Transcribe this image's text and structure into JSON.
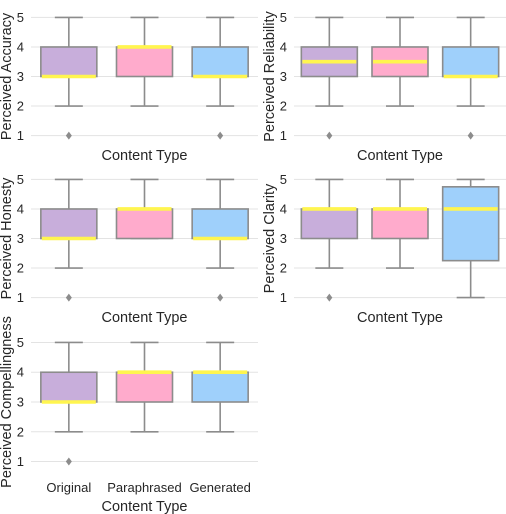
{
  "chart_data": [
    {
      "type": "box",
      "ylabel": "Perceived Accuracy",
      "xlabel": "Content Type",
      "categories": [
        "Original",
        "Paraphrased",
        "Generated"
      ],
      "show_category_labels": false,
      "yticks": [
        "1",
        "2",
        "3",
        "4",
        "5"
      ],
      "ylim": [
        0.85,
        5.15
      ],
      "grid": true,
      "boxes": [
        {
          "category": "Original",
          "whisker_low": 2,
          "q1": 3,
          "median": 3,
          "q3": 4,
          "whisker_high": 5,
          "outliers": [
            1
          ]
        },
        {
          "category": "Paraphrased",
          "whisker_low": 2,
          "q1": 3,
          "median": 4,
          "q3": 4,
          "whisker_high": 5,
          "outliers": []
        },
        {
          "category": "Generated",
          "whisker_low": 2,
          "q1": 3,
          "median": 3,
          "q3": 4,
          "whisker_high": 5,
          "outliers": [
            1
          ]
        }
      ]
    },
    {
      "type": "box",
      "ylabel": "Perceived Reliability",
      "xlabel": "Content Type",
      "categories": [
        "Original",
        "Paraphrased",
        "Generated"
      ],
      "show_category_labels": false,
      "yticks": [
        "1",
        "2",
        "3",
        "4",
        "5"
      ],
      "ylim": [
        0.85,
        5.15
      ],
      "grid": true,
      "boxes": [
        {
          "category": "Original",
          "whisker_low": 2,
          "q1": 3,
          "median": 3.5,
          "q3": 4,
          "whisker_high": 5,
          "outliers": [
            1
          ]
        },
        {
          "category": "Paraphrased",
          "whisker_low": 2,
          "q1": 3,
          "median": 3.5,
          "q3": 4,
          "whisker_high": 5,
          "outliers": []
        },
        {
          "category": "Generated",
          "whisker_low": 2,
          "q1": 3,
          "median": 3,
          "q3": 4,
          "whisker_high": 5,
          "outliers": [
            1
          ]
        }
      ]
    },
    {
      "type": "box",
      "ylabel": "Perceived Honesty",
      "xlabel": "Content Type",
      "categories": [
        "Original",
        "Paraphrased",
        "Generated"
      ],
      "show_category_labels": false,
      "yticks": [
        "1",
        "2",
        "3",
        "4",
        "5"
      ],
      "ylim": [
        0.85,
        5.15
      ],
      "grid": true,
      "boxes": [
        {
          "category": "Original",
          "whisker_low": 2,
          "q1": 3,
          "median": 3,
          "q3": 4,
          "whisker_high": 5,
          "outliers": [
            1
          ]
        },
        {
          "category": "Paraphrased",
          "whisker_low": 3,
          "q1": 3,
          "median": 4,
          "q3": 4,
          "whisker_high": 5,
          "outliers": []
        },
        {
          "category": "Generated",
          "whisker_low": 2,
          "q1": 3,
          "median": 3,
          "q3": 4,
          "whisker_high": 5,
          "outliers": [
            1
          ]
        }
      ]
    },
    {
      "type": "box",
      "ylabel": "Perceived Clarity",
      "xlabel": "Content Type",
      "categories": [
        "Original",
        "Paraphrased",
        "Generated"
      ],
      "show_category_labels": false,
      "yticks": [
        "1",
        "2",
        "3",
        "4",
        "5"
      ],
      "ylim": [
        0.85,
        5.15
      ],
      "grid": true,
      "boxes": [
        {
          "category": "Original",
          "whisker_low": 2,
          "q1": 3,
          "median": 4,
          "q3": 4,
          "whisker_high": 5,
          "outliers": [
            1
          ]
        },
        {
          "category": "Paraphrased",
          "whisker_low": 2,
          "q1": 3,
          "median": 4,
          "q3": 4,
          "whisker_high": 5,
          "outliers": []
        },
        {
          "category": "Generated",
          "whisker_low": 1,
          "q1": 2.25,
          "median": 4,
          "q3": 4.75,
          "whisker_high": 5,
          "outliers": []
        }
      ]
    },
    {
      "type": "box",
      "ylabel": "Perceived Compellingness",
      "xlabel": "Content Type",
      "categories": [
        "Original",
        "Paraphrased",
        "Generated"
      ],
      "show_category_labels": true,
      "yticks": [
        "1",
        "2",
        "3",
        "4",
        "5"
      ],
      "ylim": [
        0.85,
        5.15
      ],
      "grid": true,
      "boxes": [
        {
          "category": "Original",
          "whisker_low": 2,
          "q1": 3,
          "median": 3,
          "q3": 4,
          "whisker_high": 5,
          "outliers": [
            1
          ]
        },
        {
          "category": "Paraphrased",
          "whisker_low": 2,
          "q1": 3,
          "median": 4,
          "q3": 4,
          "whisker_high": 5,
          "outliers": []
        },
        {
          "category": "Generated",
          "whisker_low": 2,
          "q1": 3,
          "median": 4,
          "q3": 4,
          "whisker_high": 5,
          "outliers": []
        }
      ]
    }
  ],
  "colors": {
    "box_fills": [
      "#c8aedb",
      "#ffabcc",
      "#9fd0fb"
    ],
    "median": "#fff54f",
    "line": "#8c8c8c",
    "outlier": "#8c8c8c"
  }
}
